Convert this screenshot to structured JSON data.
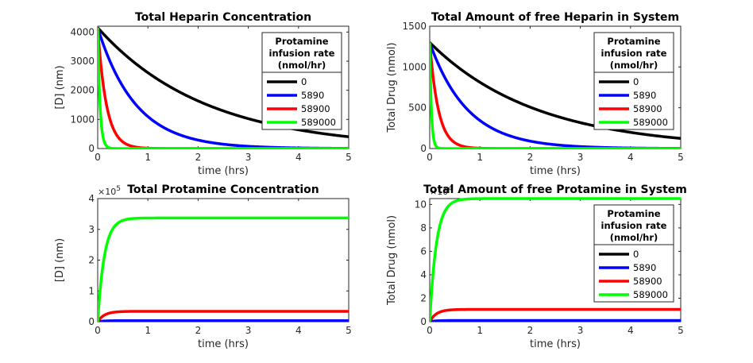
{
  "figure": {
    "background": "#ffffff"
  },
  "chart_data": [
    {
      "id": "p1",
      "type": "line",
      "title": "Total Heparin Concentration",
      "xlabel": "time (hrs)",
      "ylabel": "[D] (nm)",
      "xlim": [
        0,
        5
      ],
      "ylim": [
        0,
        4200
      ],
      "xticks": [
        0,
        1,
        2,
        3,
        4,
        5
      ],
      "yticks": [
        0,
        1000,
        2000,
        3000,
        4000
      ],
      "y_exponent": "",
      "legend": {
        "title": [
          "Protamine",
          "infusion rate",
          "(nmol/hr)"
        ],
        "location": "top-right"
      },
      "series": [
        {
          "name": "0",
          "color": "#000000",
          "start": 4150,
          "end": 0,
          "rate": 0.466,
          "shape": "decay"
        },
        {
          "name": "5890",
          "color": "#0000ff",
          "start": 4150,
          "end": 0,
          "rate": 1.33,
          "shape": "decay"
        },
        {
          "name": "58900",
          "color": "#ff0000",
          "start": 4150,
          "end": 0,
          "rate": 5.8,
          "shape": "decay"
        },
        {
          "name": "589000",
          "color": "#00ff00",
          "start": 4150,
          "end": 0,
          "rate": 22,
          "shape": "decay"
        }
      ]
    },
    {
      "id": "p2",
      "type": "line",
      "title": "Total Amount of free Heparin in System",
      "xlabel": "time (hrs)",
      "ylabel": "Total Drug (nmol)",
      "xlim": [
        0,
        5
      ],
      "ylim": [
        0,
        1500
      ],
      "xticks": [
        0,
        1,
        2,
        3,
        4,
        5
      ],
      "yticks": [
        0,
        500,
        1000,
        1500
      ],
      "y_exponent": "",
      "legend": {
        "title": [
          "Protamine",
          "infusion rate",
          "(nmol/hr)"
        ],
        "location": "top-right"
      },
      "series": [
        {
          "name": "0",
          "color": "#000000",
          "start": 1300,
          "end": 0,
          "rate": 0.47,
          "shape": "decay"
        },
        {
          "name": "5890",
          "color": "#0000ff",
          "start": 1300,
          "end": 0,
          "rate": 1.33,
          "shape": "decay"
        },
        {
          "name": "58900",
          "color": "#ff0000",
          "start": 1300,
          "end": 0,
          "rate": 5.8,
          "shape": "decay"
        },
        {
          "name": "589000",
          "color": "#00ff00",
          "start": 1300,
          "end": 0,
          "rate": 30,
          "shape": "decay"
        }
      ]
    },
    {
      "id": "p3",
      "type": "line",
      "title": "Total Protamine Concentration",
      "xlabel": "time (hrs)",
      "ylabel": "[D] (nm)",
      "xlim": [
        0,
        5
      ],
      "ylim": [
        0,
        4
      ],
      "xticks": [
        0,
        1,
        2,
        3,
        4,
        5
      ],
      "yticks": [
        0,
        1,
        2,
        3,
        4
      ],
      "y_exponent": "10",
      "y_exponent_power": "5",
      "legend": null,
      "series": [
        {
          "name": "0",
          "color": "#000000",
          "start": 0,
          "end": 0,
          "rate": 1,
          "shape": "rise"
        },
        {
          "name": "5890",
          "color": "#0000ff",
          "start": 0,
          "end": 0.0337,
          "rate": 7.5,
          "shape": "rise"
        },
        {
          "name": "58900",
          "color": "#ff0000",
          "start": 0,
          "end": 0.337,
          "rate": 7.5,
          "shape": "rise"
        },
        {
          "name": "589000",
          "color": "#00ff00",
          "start": 0,
          "end": 3.37,
          "rate": 7.5,
          "shape": "rise"
        }
      ]
    },
    {
      "id": "p4",
      "type": "line",
      "title": "Total Amount of free Protamine in System",
      "xlabel": "time (hrs)",
      "ylabel": "Total Drug (nmol)",
      "xlim": [
        0,
        5
      ],
      "ylim": [
        0,
        10.5
      ],
      "xticks": [
        0,
        1,
        2,
        3,
        4,
        5
      ],
      "yticks": [
        0,
        2,
        4,
        6,
        8,
        10
      ],
      "y_exponent": "10",
      "y_exponent_power": "4",
      "legend": {
        "title": [
          "Protamine",
          "infusion rate",
          "(nmol/hr)"
        ],
        "location": "top-right"
      },
      "series": [
        {
          "name": "0",
          "color": "#000000",
          "start": 0,
          "end": 0,
          "rate": 1,
          "shape": "rise"
        },
        {
          "name": "5890",
          "color": "#0000ff",
          "start": 0,
          "end": 0.105,
          "rate": 7.5,
          "shape": "rise"
        },
        {
          "name": "58900",
          "color": "#ff0000",
          "start": 0,
          "end": 1.05,
          "rate": 7.5,
          "shape": "rise"
        },
        {
          "name": "589000",
          "color": "#00ff00",
          "start": 0,
          "end": 10.5,
          "rate": 7.5,
          "shape": "rise"
        }
      ]
    }
  ]
}
